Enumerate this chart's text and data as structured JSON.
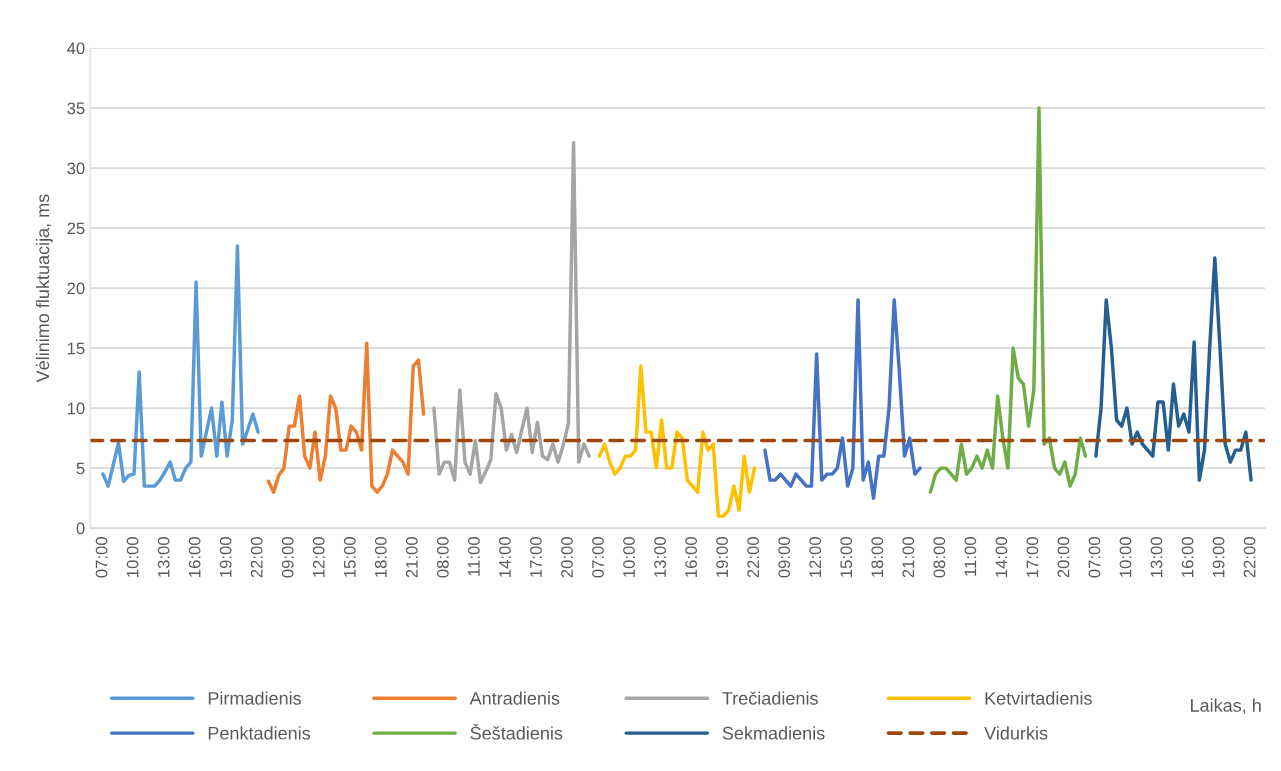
{
  "chart_data": {
    "type": "line",
    "ylabel": "Vėlinimo fluktuacija, ms",
    "annotations": [
      "Laikas, h"
    ],
    "categories": [
      "07:00",
      null,
      null,
      null,
      null,
      null,
      "10:00",
      null,
      null,
      null,
      null,
      null,
      "13:00",
      null,
      null,
      null,
      null,
      null,
      "16:00",
      null,
      null,
      null,
      null,
      null,
      "19:00",
      null,
      null,
      null,
      null,
      null,
      "22:00",
      null,
      null,
      null,
      null,
      null,
      "09:00",
      null,
      null,
      null,
      null,
      null,
      "12:00",
      null,
      null,
      null,
      null,
      null,
      "15:00",
      null,
      null,
      null,
      null,
      null,
      "18:00",
      null,
      null,
      null,
      null,
      null,
      "21:00",
      null,
      null,
      null,
      null,
      null,
      "08:00",
      null,
      null,
      null,
      null,
      null,
      "11:00",
      null,
      null,
      null,
      null,
      null,
      "14:00",
      null,
      null,
      null,
      null,
      null,
      "17:00",
      null,
      null,
      null,
      null,
      null,
      "20:00",
      null,
      null,
      null,
      null,
      null,
      "07:00",
      null,
      null,
      null,
      null,
      null,
      "10:00",
      null,
      null,
      null,
      null,
      null,
      "13:00",
      null,
      null,
      null,
      null,
      null,
      "16:00",
      null,
      null,
      null,
      null,
      null,
      "19:00",
      null,
      null,
      null,
      null,
      null,
      "22:00",
      null,
      null,
      null,
      null,
      null,
      "09:00",
      null,
      null,
      null,
      null,
      null,
      "12:00",
      null,
      null,
      null,
      null,
      null,
      "15:00",
      null,
      null,
      null,
      null,
      null,
      "18:00",
      null,
      null,
      null,
      null,
      null,
      "21:00",
      null,
      null,
      null,
      null,
      null,
      "08:00",
      null,
      null,
      null,
      null,
      null,
      "11:00",
      null,
      null,
      null,
      null,
      null,
      "14:00",
      null,
      null,
      null,
      null,
      null,
      "17:00",
      null,
      null,
      null,
      null,
      null,
      "20:00",
      null,
      null,
      null,
      null,
      null,
      "07:00",
      null,
      null,
      null,
      null,
      null,
      "10:00",
      null,
      null,
      null,
      null,
      null,
      "13:00",
      null,
      null,
      null,
      null,
      null,
      "16:00",
      null,
      null,
      null,
      null,
      null,
      "19:00",
      null,
      null,
      null,
      null,
      null,
      "22:00",
      null
    ],
    "series": [
      {
        "name": "Pirmadienis",
        "color": "#5b9bd5",
        "values": [
          4.5,
          3.5,
          5.3,
          7.1,
          3.9,
          4.4,
          4.5,
          13,
          3.5,
          3.5,
          3.5,
          4,
          4.7,
          5.5,
          4,
          4,
          5,
          5.5,
          20.5,
          6,
          8,
          10,
          6,
          10.5,
          6,
          9,
          23.5,
          7,
          8.2,
          9.5,
          8,
          null,
          null,
          null,
          null,
          null,
          null,
          null,
          null,
          null,
          null,
          null,
          null,
          null,
          null,
          null,
          null,
          null,
          null,
          null,
          null,
          null,
          null,
          null,
          null,
          null,
          null,
          null,
          null,
          null,
          null,
          null,
          null,
          null,
          null,
          null,
          null,
          null,
          null,
          null,
          null,
          null,
          null,
          null,
          null,
          null,
          null,
          null,
          null,
          null,
          null,
          null,
          null,
          null,
          null,
          null,
          null,
          null,
          null,
          null,
          null,
          null,
          null,
          null,
          null,
          null,
          null,
          null,
          null,
          null,
          null,
          null,
          null,
          null,
          null,
          null,
          null,
          null,
          null,
          null,
          null,
          null,
          null,
          null,
          null,
          null,
          null,
          null,
          null,
          null,
          null,
          null,
          null,
          null,
          null,
          null,
          null,
          null,
          null,
          null,
          null,
          null,
          null,
          null,
          null,
          null,
          null,
          null,
          null,
          null,
          null,
          null,
          null,
          null,
          null,
          null,
          null,
          null,
          null,
          null,
          null,
          null,
          null,
          null,
          null,
          null,
          null,
          null,
          null,
          null,
          null,
          null,
          null,
          null,
          null,
          null,
          null,
          null,
          null,
          null,
          null,
          null,
          null,
          null,
          null,
          null,
          null,
          null,
          null,
          null,
          null,
          null,
          null,
          null,
          null,
          null,
          null,
          null,
          null,
          null,
          null,
          null,
          null,
          null,
          null,
          null,
          null,
          null,
          null,
          null,
          null,
          null,
          null,
          null,
          null,
          null,
          null,
          null,
          null,
          null,
          null,
          null,
          null,
          null,
          null,
          null,
          null,
          null,
          null,
          null,
          null,
          null,
          null,
          null
        ]
      },
      {
        "name": "Antradienis",
        "color": "#ed7d31",
        "values": [
          null,
          null,
          null,
          null,
          null,
          null,
          null,
          null,
          null,
          null,
          null,
          null,
          null,
          null,
          null,
          null,
          null,
          null,
          null,
          null,
          null,
          null,
          null,
          null,
          null,
          null,
          null,
          null,
          null,
          null,
          null,
          null,
          3.9,
          3,
          4.4,
          5,
          8.5,
          8.5,
          11,
          6,
          5,
          8,
          4,
          6,
          11,
          10,
          6.5,
          6.5,
          8.5,
          8,
          6.5,
          15.4,
          3.5,
          3,
          3.5,
          4.5,
          6.5,
          6,
          5.5,
          4.5,
          13.5,
          14,
          9.5,
          null,
          null,
          null,
          null,
          null,
          null,
          null,
          null,
          null,
          null,
          null,
          null,
          null,
          null,
          null,
          null,
          null,
          null,
          null,
          null,
          null,
          null,
          null,
          null,
          null,
          null,
          null,
          null,
          null,
          null,
          null,
          null,
          null,
          null,
          null,
          null,
          null,
          null,
          null,
          null,
          null,
          null,
          null,
          null,
          null,
          null,
          null,
          null,
          null,
          null,
          null,
          null,
          null,
          null,
          null,
          null,
          null,
          null,
          null,
          null,
          null,
          null,
          null,
          null,
          null,
          null,
          null,
          null,
          null,
          null,
          null,
          null,
          null,
          null,
          null,
          null,
          null,
          null,
          null,
          null,
          null,
          null,
          null,
          null,
          null,
          null,
          null,
          null,
          null,
          null,
          null,
          null,
          null,
          null,
          null,
          null,
          null,
          null,
          null,
          null,
          null,
          null,
          null,
          null,
          null,
          null,
          null,
          null,
          null,
          null,
          null,
          null,
          null,
          null,
          null,
          null,
          null,
          null,
          null,
          null,
          null,
          null,
          null,
          null,
          null,
          null,
          null,
          null,
          null,
          null,
          null,
          null,
          null,
          null,
          null,
          null,
          null,
          null,
          null,
          null,
          null,
          null,
          null,
          null,
          null,
          null,
          null,
          null,
          null,
          null,
          null,
          null,
          null,
          null,
          null,
          null,
          null,
          null,
          null,
          null,
          null
        ]
      },
      {
        "name": "Trečiadienis",
        "color": "#a5a5a5",
        "values": [
          null,
          null,
          null,
          null,
          null,
          null,
          null,
          null,
          null,
          null,
          null,
          null,
          null,
          null,
          null,
          null,
          null,
          null,
          null,
          null,
          null,
          null,
          null,
          null,
          null,
          null,
          null,
          null,
          null,
          null,
          null,
          null,
          null,
          null,
          null,
          null,
          null,
          null,
          null,
          null,
          null,
          null,
          null,
          null,
          null,
          null,
          null,
          null,
          null,
          null,
          null,
          null,
          null,
          null,
          null,
          null,
          null,
          null,
          null,
          null,
          null,
          null,
          null,
          null,
          10,
          4.5,
          5.5,
          5.5,
          4,
          11.5,
          5.5,
          4.5,
          7.3,
          3.8,
          4.7,
          5.7,
          11.2,
          10,
          6.5,
          7.8,
          6.3,
          8.2,
          10,
          6.3,
          8.8,
          6,
          5.7,
          7,
          5.5,
          6.9,
          8.7,
          32.1,
          5.5,
          7,
          6,
          null,
          null,
          null,
          null,
          null,
          null,
          null,
          null,
          null,
          null,
          null,
          null,
          null,
          null,
          null,
          null,
          null,
          null,
          null,
          null,
          null,
          null,
          null,
          null,
          null,
          null,
          null,
          null,
          null,
          null,
          null,
          null,
          null,
          null,
          null,
          null,
          null,
          null,
          null,
          null,
          null,
          null,
          null,
          null,
          null,
          null,
          null,
          null,
          null,
          null,
          null,
          null,
          null,
          null,
          null,
          null,
          null,
          null,
          null,
          null,
          null,
          null,
          null,
          null,
          null,
          null,
          null,
          null,
          null,
          null,
          null,
          null,
          null,
          null,
          null,
          null,
          null,
          null,
          null,
          null,
          null,
          null,
          null,
          null,
          null,
          null,
          null,
          null,
          null,
          null,
          null,
          null,
          null,
          null,
          null,
          null,
          null,
          null,
          null,
          null,
          null,
          null,
          null,
          null,
          null,
          null,
          null,
          null,
          null,
          null,
          null,
          null,
          null,
          null,
          null,
          null,
          null,
          null,
          null,
          null,
          null,
          null,
          null,
          null,
          null,
          null,
          null,
          null,
          null
        ]
      },
      {
        "name": "Ketvirtadienis",
        "color": "#ffc000",
        "values": [
          null,
          null,
          null,
          null,
          null,
          null,
          null,
          null,
          null,
          null,
          null,
          null,
          null,
          null,
          null,
          null,
          null,
          null,
          null,
          null,
          null,
          null,
          null,
          null,
          null,
          null,
          null,
          null,
          null,
          null,
          null,
          null,
          null,
          null,
          null,
          null,
          null,
          null,
          null,
          null,
          null,
          null,
          null,
          null,
          null,
          null,
          null,
          null,
          null,
          null,
          null,
          null,
          null,
          null,
          null,
          null,
          null,
          null,
          null,
          null,
          null,
          null,
          null,
          null,
          null,
          null,
          null,
          null,
          null,
          null,
          null,
          null,
          null,
          null,
          null,
          null,
          null,
          null,
          null,
          null,
          null,
          null,
          null,
          null,
          null,
          null,
          null,
          null,
          null,
          null,
          null,
          null,
          null,
          null,
          null,
          null,
          6,
          7,
          5.5,
          4.5,
          5,
          6,
          6,
          6.5,
          13.5,
          8,
          8,
          5,
          9,
          5,
          5,
          8,
          7.5,
          4,
          3.5,
          3,
          8,
          6.5,
          7,
          1,
          1,
          1.5,
          3.5,
          1.5,
          6,
          3,
          5,
          null,
          null,
          null,
          null,
          null,
          null,
          null,
          null,
          null,
          null,
          null,
          null,
          null,
          null,
          null,
          null,
          null,
          null,
          null,
          null,
          null,
          null,
          null,
          null,
          null,
          null,
          null,
          null,
          null,
          null,
          null,
          null,
          null,
          null,
          null,
          null,
          null,
          null,
          null,
          null,
          null,
          null,
          null,
          null,
          null,
          null,
          null,
          null,
          null,
          null,
          null,
          null,
          null,
          null,
          null,
          null,
          null,
          null,
          null,
          null,
          null,
          null,
          null,
          null,
          null,
          null,
          null,
          null,
          null,
          null,
          null,
          null,
          null,
          null,
          null,
          null,
          null,
          null,
          null,
          null,
          null,
          null,
          null,
          null,
          null,
          null,
          null,
          null,
          null,
          null,
          null,
          null,
          null,
          null,
          null,
          null,
          null
        ]
      },
      {
        "name": "Penktadienis",
        "color": "#4472c4",
        "values": [
          null,
          null,
          null,
          null,
          null,
          null,
          null,
          null,
          null,
          null,
          null,
          null,
          null,
          null,
          null,
          null,
          null,
          null,
          null,
          null,
          null,
          null,
          null,
          null,
          null,
          null,
          null,
          null,
          null,
          null,
          null,
          null,
          null,
          null,
          null,
          null,
          null,
          null,
          null,
          null,
          null,
          null,
          null,
          null,
          null,
          null,
          null,
          null,
          null,
          null,
          null,
          null,
          null,
          null,
          null,
          null,
          null,
          null,
          null,
          null,
          null,
          null,
          null,
          null,
          null,
          null,
          null,
          null,
          null,
          null,
          null,
          null,
          null,
          null,
          null,
          null,
          null,
          null,
          null,
          null,
          null,
          null,
          null,
          null,
          null,
          null,
          null,
          null,
          null,
          null,
          null,
          null,
          null,
          null,
          null,
          null,
          null,
          null,
          null,
          null,
          null,
          null,
          null,
          null,
          null,
          null,
          null,
          null,
          null,
          null,
          null,
          null,
          null,
          null,
          null,
          null,
          null,
          null,
          null,
          null,
          null,
          null,
          null,
          null,
          null,
          null,
          null,
          null,
          6.5,
          4,
          4,
          4.5,
          4,
          3.5,
          4.5,
          4,
          3.5,
          3.5,
          14.5,
          4,
          4.5,
          4.5,
          5,
          7.5,
          3.5,
          5,
          19,
          4,
          5.5,
          2.5,
          6,
          6,
          10,
          19,
          13,
          6,
          7.5,
          4.5,
          5,
          null,
          null,
          null,
          null,
          null,
          null,
          null,
          null,
          null,
          null,
          null,
          null,
          null,
          null,
          null,
          null,
          null,
          null,
          null,
          null,
          null,
          null,
          null,
          null,
          null,
          null,
          null,
          null,
          null,
          null,
          null,
          null,
          null,
          null,
          null,
          null,
          null,
          null,
          null,
          null,
          null,
          null,
          null,
          null,
          null,
          null,
          null,
          null,
          null,
          null,
          null,
          null,
          null,
          null,
          null,
          null,
          null,
          null,
          null,
          null,
          null,
          null,
          null,
          null,
          null
        ]
      },
      {
        "name": "Šeštadienis",
        "color": "#70ad47",
        "values": [
          null,
          null,
          null,
          null,
          null,
          null,
          null,
          null,
          null,
          null,
          null,
          null,
          null,
          null,
          null,
          null,
          null,
          null,
          null,
          null,
          null,
          null,
          null,
          null,
          null,
          null,
          null,
          null,
          null,
          null,
          null,
          null,
          null,
          null,
          null,
          null,
          null,
          null,
          null,
          null,
          null,
          null,
          null,
          null,
          null,
          null,
          null,
          null,
          null,
          null,
          null,
          null,
          null,
          null,
          null,
          null,
          null,
          null,
          null,
          null,
          null,
          null,
          null,
          null,
          null,
          null,
          null,
          null,
          null,
          null,
          null,
          null,
          null,
          null,
          null,
          null,
          null,
          null,
          null,
          null,
          null,
          null,
          null,
          null,
          null,
          null,
          null,
          null,
          null,
          null,
          null,
          null,
          null,
          null,
          null,
          null,
          null,
          null,
          null,
          null,
          null,
          null,
          null,
          null,
          null,
          null,
          null,
          null,
          null,
          null,
          null,
          null,
          null,
          null,
          null,
          null,
          null,
          null,
          null,
          null,
          null,
          null,
          null,
          null,
          null,
          null,
          null,
          null,
          null,
          null,
          null,
          null,
          null,
          null,
          null,
          null,
          null,
          null,
          null,
          null,
          null,
          null,
          null,
          null,
          null,
          null,
          null,
          null,
          null,
          null,
          null,
          null,
          null,
          null,
          null,
          null,
          null,
          null,
          null,
          null,
          3,
          4.5,
          5,
          5,
          4.5,
          4,
          7,
          4.5,
          5,
          6,
          5,
          6.5,
          5,
          11,
          7.5,
          5,
          15,
          12.5,
          12,
          8.5,
          11.5,
          35,
          7,
          7.5,
          5,
          4.5,
          5.5,
          3.5,
          4.5,
          7.5,
          6,
          null,
          null,
          null,
          null,
          null,
          null,
          null,
          null,
          null,
          null,
          null,
          null,
          null,
          null,
          null,
          null,
          null,
          null,
          null,
          null,
          null,
          null,
          null,
          null,
          null,
          null,
          null,
          null,
          null,
          null,
          null,
          null,
          null
        ]
      },
      {
        "name": "Sekmadienis",
        "color": "#255e91",
        "values": [
          null,
          null,
          null,
          null,
          null,
          null,
          null,
          null,
          null,
          null,
          null,
          null,
          null,
          null,
          null,
          null,
          null,
          null,
          null,
          null,
          null,
          null,
          null,
          null,
          null,
          null,
          null,
          null,
          null,
          null,
          null,
          null,
          null,
          null,
          null,
          null,
          null,
          null,
          null,
          null,
          null,
          null,
          null,
          null,
          null,
          null,
          null,
          null,
          null,
          null,
          null,
          null,
          null,
          null,
          null,
          null,
          null,
          null,
          null,
          null,
          null,
          null,
          null,
          null,
          null,
          null,
          null,
          null,
          null,
          null,
          null,
          null,
          null,
          null,
          null,
          null,
          null,
          null,
          null,
          null,
          null,
          null,
          null,
          null,
          null,
          null,
          null,
          null,
          null,
          null,
          null,
          null,
          null,
          null,
          null,
          null,
          null,
          null,
          null,
          null,
          null,
          null,
          null,
          null,
          null,
          null,
          null,
          null,
          null,
          null,
          null,
          null,
          null,
          null,
          null,
          null,
          null,
          null,
          null,
          null,
          null,
          null,
          null,
          null,
          null,
          null,
          null,
          null,
          null,
          null,
          null,
          null,
          null,
          null,
          null,
          null,
          null,
          null,
          null,
          null,
          null,
          null,
          null,
          null,
          null,
          null,
          null,
          null,
          null,
          null,
          null,
          null,
          null,
          null,
          null,
          null,
          null,
          null,
          null,
          null,
          null,
          null,
          null,
          null,
          null,
          null,
          null,
          null,
          null,
          null,
          null,
          null,
          null,
          null,
          null,
          null,
          null,
          null,
          null,
          null,
          null,
          null,
          null,
          null,
          null,
          null,
          null,
          null,
          null,
          null,
          null,
          null,
          6,
          10,
          19,
          15,
          9,
          8.5,
          10,
          7,
          8,
          7,
          6.5,
          6,
          10.5,
          10.5,
          6.5,
          12,
          8.5,
          9.5,
          8,
          15.5,
          4,
          6.5,
          15,
          22.5,
          15,
          7,
          5.5,
          6.5,
          6.5,
          8,
          4,
          null
        ]
      }
    ],
    "ref_lines": [
      {
        "axis": "y",
        "value": 7.3,
        "label": "Vidurkis",
        "color": "#9e480e",
        "line_style": "dashed"
      }
    ],
    "ylim": [
      0,
      40
    ],
    "yticks": [
      0,
      5,
      10,
      15,
      20,
      25,
      30,
      35,
      40
    ],
    "grid": "y",
    "legend": "bottom"
  }
}
